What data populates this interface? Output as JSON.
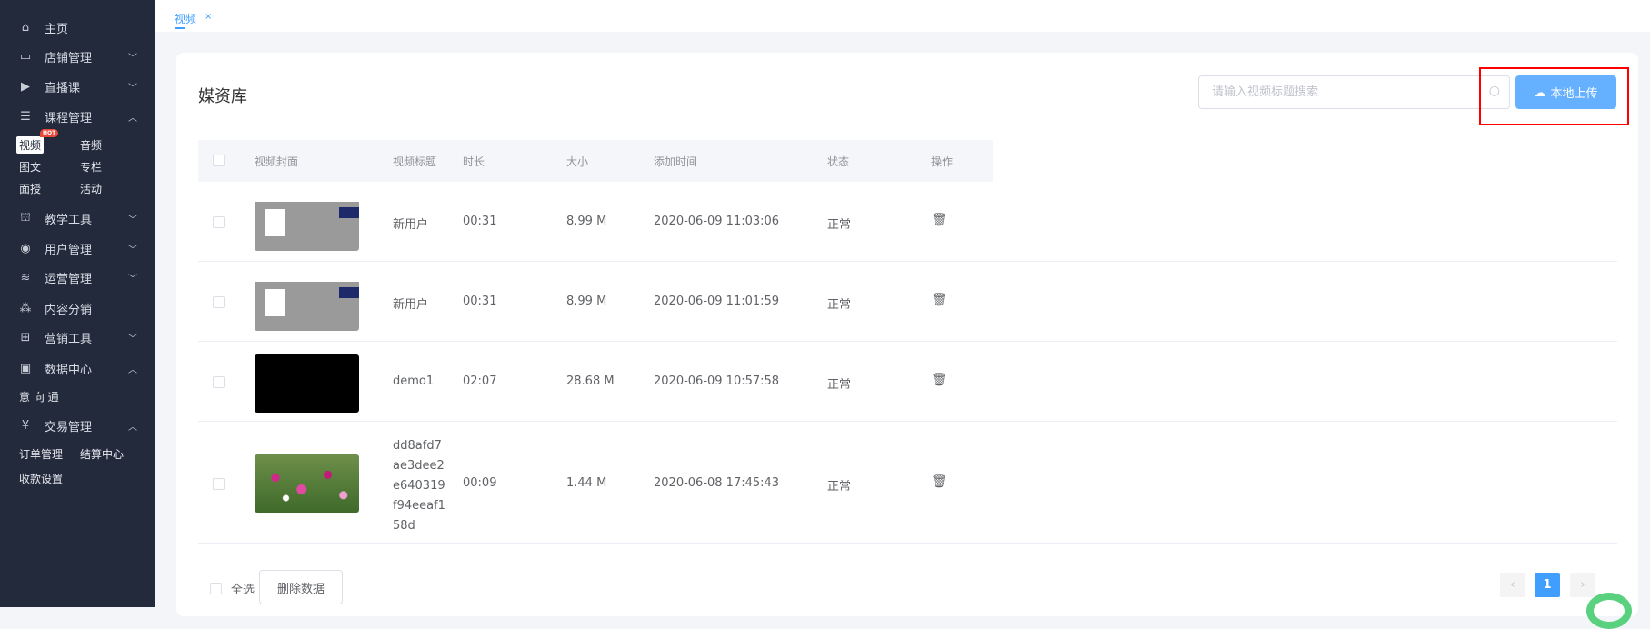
{
  "sidebar": {
    "items": [
      {
        "label": "主页",
        "icon": "home-icon"
      },
      {
        "label": "店铺管理",
        "icon": "store-icon",
        "expanded": false
      },
      {
        "label": "直播课",
        "icon": "live-icon",
        "expanded": false
      },
      {
        "label": "课程管理",
        "icon": "course-icon",
        "expanded": true,
        "children": [
          "视频",
          "音频",
          "图文",
          "专栏",
          "面授",
          "活动"
        ]
      },
      {
        "label": "教学工具",
        "icon": "tool-icon",
        "expanded": false
      },
      {
        "label": "用户管理",
        "icon": "user-icon",
        "expanded": false
      },
      {
        "label": "运营管理",
        "icon": "layers-icon",
        "expanded": false
      },
      {
        "label": "内容分销",
        "icon": "distribution-icon"
      },
      {
        "label": "营销工具",
        "icon": "gift-icon",
        "expanded": false
      },
      {
        "label": "数据中心",
        "icon": "chart-icon",
        "expanded": true,
        "children": [
          "意 向 通"
        ]
      },
      {
        "label": "交易管理",
        "icon": "yen-icon",
        "expanded": true,
        "children": [
          "订单管理",
          "结算中心",
          "收款设置"
        ]
      }
    ],
    "hot_badge": "HOT",
    "active_child": "视频"
  },
  "tabs": [
    {
      "label": "视频",
      "close": "×"
    }
  ],
  "main": {
    "title": "媒资库",
    "search_placeholder": "请输入视频标题搜索",
    "upload_label": "本地上传",
    "table": {
      "columns": [
        "视频封面",
        "视频标题",
        "时长",
        "大小",
        "添加时间",
        "状态",
        "操作"
      ],
      "rows": [
        {
          "cover": "screenshot",
          "title": "新用户",
          "duration": "00:31",
          "size": "8.99 M",
          "added": "2020-06-09 11:03:06",
          "status": "正常"
        },
        {
          "cover": "screenshot",
          "title": "新用户",
          "duration": "00:31",
          "size": "8.99 M",
          "added": "2020-06-09 11:01:59",
          "status": "正常"
        },
        {
          "cover": "black",
          "title": "demo1",
          "duration": "02:07",
          "size": "28.68 M",
          "added": "2020-06-09 10:57:58",
          "status": "正常"
        },
        {
          "cover": "flowers",
          "title": "dd8afd7ae3dee2e640319f94eeaf158d",
          "title_lines": [
            "dd8afd7",
            "ae3dee2",
            "e640319",
            "f94eeaf1",
            "58d"
          ],
          "duration": "00:09",
          "size": "1.44 M",
          "added": "2020-06-08 17:45:43",
          "status": "正常"
        }
      ]
    },
    "footer": {
      "select_all": "全选",
      "delete_label": "删除数据"
    },
    "pagination": {
      "current": "1",
      "prev": "‹",
      "next": "›"
    }
  },
  "colors": {
    "sidebar_bg": "#232a3c",
    "accent": "#409eff",
    "upload_bg": "#66b1ff",
    "highlight_box": "#ff0000"
  }
}
